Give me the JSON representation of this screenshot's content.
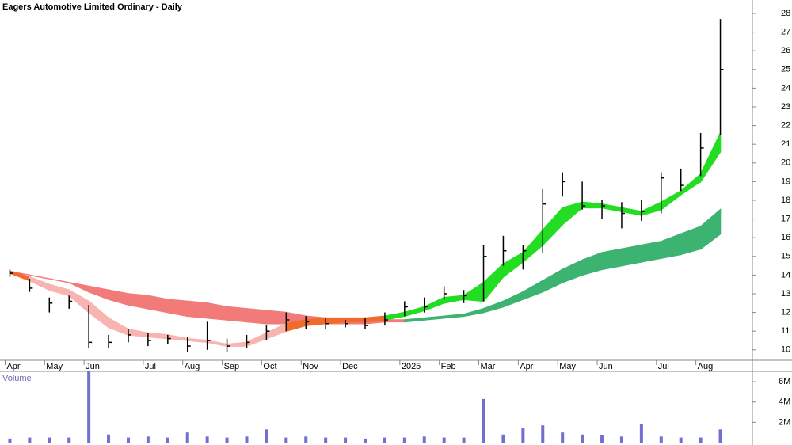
{
  "chart_data": [
    {
      "type": "ohlc",
      "title": "Eagers Automotive Limited Ordinary - Daily",
      "categories": [
        "Apr",
        null,
        "May",
        null,
        "Jun",
        null,
        null,
        "Jul",
        null,
        "Aug",
        null,
        "Sep",
        null,
        "Oct",
        null,
        "Nov",
        null,
        "Dec",
        null,
        null,
        "2025",
        null,
        "Feb",
        null,
        "Mar",
        null,
        "Apr",
        null,
        "May",
        null,
        "Jun",
        null,
        null,
        "Jul",
        null,
        "Aug",
        null
      ],
      "high": [
        14.3,
        13.8,
        12.8,
        12.9,
        12.4,
        10.8,
        11.1,
        10.9,
        10.8,
        10.7,
        11.5,
        10.6,
        10.8,
        11.3,
        12.0,
        11.8,
        11.7,
        11.6,
        11.7,
        12.0,
        12.6,
        12.8,
        13.4,
        13.2,
        15.6,
        16.1,
        15.6,
        18.6,
        19.5,
        19.0,
        18.0,
        17.9,
        18.0,
        19.5,
        19.7,
        21.6,
        27.7
      ],
      "low": [
        13.9,
        13.1,
        12.0,
        12.2,
        10.1,
        10.1,
        10.4,
        10.2,
        10.3,
        9.9,
        10.0,
        9.9,
        10.1,
        10.5,
        11.0,
        11.1,
        11.1,
        11.2,
        11.1,
        11.3,
        11.8,
        12.0,
        12.7,
        12.5,
        12.6,
        14.5,
        14.3,
        15.2,
        18.2,
        17.5,
        17.0,
        16.5,
        16.9,
        17.3,
        18.5,
        19.3,
        21.5
      ],
      "close": [
        14.1,
        13.3,
        12.5,
        12.6,
        10.4,
        10.4,
        10.8,
        10.5,
        10.6,
        10.2,
        10.5,
        10.2,
        10.4,
        11.0,
        11.6,
        11.5,
        11.4,
        11.4,
        11.3,
        11.6,
        12.3,
        12.3,
        13.0,
        12.9,
        15.0,
        15.3,
        15.3,
        17.8,
        19.0,
        17.7,
        17.7,
        17.3,
        17.4,
        19.2,
        18.8,
        20.8,
        25.0
      ],
      "bar_color": "#000000",
      "short_band": {
        "upper": [
          14.2,
          13.9,
          13.5,
          13.2,
          12.6,
          11.7,
          11.1,
          10.9,
          10.8,
          10.6,
          10.5,
          10.3,
          10.4,
          10.9,
          11.4,
          11.6,
          11.7,
          11.7,
          11.7,
          11.8,
          12.0,
          12.3,
          12.8,
          12.9,
          13.6,
          14.6,
          15.2,
          16.4,
          17.6,
          17.9,
          17.8,
          17.6,
          17.4,
          17.9,
          18.5,
          19.4,
          21.6
        ],
        "lower": [
          14.1,
          13.7,
          13.2,
          12.9,
          12.0,
          11.2,
          10.8,
          10.7,
          10.6,
          10.5,
          10.4,
          10.2,
          10.2,
          10.6,
          11.0,
          11.3,
          11.4,
          11.5,
          11.5,
          11.6,
          11.8,
          12.1,
          12.5,
          12.7,
          12.6,
          13.9,
          14.7,
          15.6,
          16.7,
          17.6,
          17.6,
          17.4,
          17.2,
          17.5,
          18.3,
          19.0,
          20.6
        ],
        "colors": {
          "up": "#22dd22",
          "down": "#f7b4b0",
          "mixed": "#f26a2a"
        }
      },
      "long_band": {
        "upper": [
          14.2,
          14.0,
          13.8,
          13.6,
          13.4,
          13.2,
          13.0,
          12.9,
          12.7,
          12.6,
          12.5,
          12.3,
          12.2,
          12.1,
          12.0,
          11.8,
          11.7,
          11.6,
          11.6,
          11.6,
          11.6,
          11.7,
          11.8,
          11.9,
          12.2,
          12.6,
          13.1,
          13.7,
          14.3,
          14.8,
          15.2,
          15.4,
          15.6,
          15.8,
          16.2,
          16.6,
          17.5
        ],
        "lower": [
          14.2,
          14.0,
          13.8,
          13.6,
          13.1,
          12.7,
          12.4,
          12.2,
          12.0,
          11.8,
          11.7,
          11.6,
          11.5,
          11.4,
          11.4,
          11.4,
          11.4,
          11.4,
          11.4,
          11.5,
          11.5,
          11.6,
          11.7,
          11.8,
          12.0,
          12.3,
          12.7,
          13.1,
          13.6,
          14.0,
          14.3,
          14.5,
          14.7,
          14.9,
          15.1,
          15.4,
          16.2
        ],
        "colors": {
          "up": "#3cb371",
          "down": "#f27a78"
        }
      },
      "ylim": [
        9.44,
        28.72
      ],
      "yticks": [
        10,
        11,
        12,
        13,
        14,
        15,
        16,
        17,
        18,
        19,
        20,
        21,
        22,
        23,
        24,
        25,
        26,
        27,
        28
      ]
    },
    {
      "type": "bar",
      "title": "Volume",
      "values": [
        400000,
        500000,
        500000,
        500000,
        7100000,
        800000,
        500000,
        600000,
        500000,
        1000000,
        600000,
        500000,
        600000,
        1300000,
        500000,
        600000,
        500000,
        500000,
        400000,
        500000,
        500000,
        600000,
        500000,
        500000,
        4300000,
        800000,
        1400000,
        1700000,
        1000000,
        800000,
        700000,
        600000,
        1800000,
        600000,
        500000,
        500000,
        1300000
      ],
      "color": "#7070d0",
      "ylim": [
        0,
        7800000
      ],
      "yticks": [
        {
          "value": 2000000,
          "label": "2M"
        },
        {
          "value": 4000000,
          "label": "4M"
        },
        {
          "value": 6000000,
          "label": "6M"
        }
      ]
    }
  ]
}
